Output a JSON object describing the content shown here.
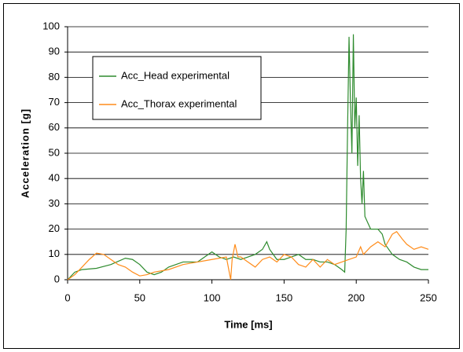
{
  "chart_data": {
    "type": "line",
    "xlabel": "Time [ms]",
    "ylabel": "Acceleration [g]",
    "xlim": [
      0,
      250
    ],
    "xticks": [
      0,
      50,
      100,
      150,
      200,
      250
    ],
    "ylim": [
      0,
      100
    ],
    "yticks": [
      0,
      10,
      20,
      30,
      40,
      50,
      60,
      70,
      80,
      90,
      100
    ],
    "grid": true,
    "legend": "upper left",
    "series": [
      {
        "name": "Acc_Head experimental",
        "color": "#2e8b2e",
        "x": [
          0,
          5,
          10,
          20,
          30,
          40,
          45,
          50,
          55,
          60,
          65,
          70,
          80,
          90,
          95,
          100,
          105,
          110,
          115,
          120,
          125,
          130,
          135,
          138,
          140,
          145,
          150,
          155,
          160,
          165,
          170,
          175,
          180,
          185,
          190,
          192,
          193,
          194,
          195,
          196,
          197,
          198,
          199,
          200,
          201,
          202,
          203,
          204,
          205,
          206,
          210,
          215,
          218,
          220,
          225,
          230,
          235,
          240,
          245,
          250
        ],
        "values": [
          0,
          3,
          4,
          4.5,
          6,
          8.5,
          8,
          6,
          3,
          2,
          3,
          5,
          7,
          7,
          9,
          11,
          9,
          8,
          9,
          8,
          9,
          10,
          12,
          15,
          12,
          8,
          8,
          9,
          10,
          8,
          8,
          7,
          7,
          6,
          4,
          3,
          20,
          60,
          96,
          70,
          50,
          97,
          60,
          72,
          45,
          65,
          40,
          30,
          43,
          25,
          20,
          20,
          18,
          14,
          10,
          8,
          7,
          5,
          4,
          4
        ]
      },
      {
        "name": "Acc_Thorax experimental",
        "color": "#ff8c1a",
        "x": [
          0,
          5,
          10,
          15,
          20,
          25,
          30,
          35,
          40,
          45,
          50,
          55,
          60,
          70,
          80,
          90,
          100,
          110,
          112,
          113,
          114,
          116,
          118,
          120,
          125,
          130,
          135,
          140,
          145,
          150,
          155,
          160,
          165,
          170,
          175,
          180,
          185,
          190,
          195,
          200,
          203,
          205,
          210,
          215,
          220,
          225,
          228,
          232,
          235,
          240,
          245,
          250
        ],
        "values": [
          0,
          2,
          5,
          8,
          10.5,
          10,
          8,
          6,
          5,
          3,
          1.5,
          2,
          3,
          4,
          6,
          7,
          8,
          9,
          3,
          0,
          8,
          14,
          9,
          9,
          7,
          5,
          8,
          9,
          7,
          10,
          9,
          6,
          5,
          8,
          5,
          8,
          6,
          7,
          8,
          9,
          13,
          10,
          13,
          15,
          13,
          18,
          19,
          16,
          14,
          12,
          13,
          12
        ]
      }
    ]
  }
}
